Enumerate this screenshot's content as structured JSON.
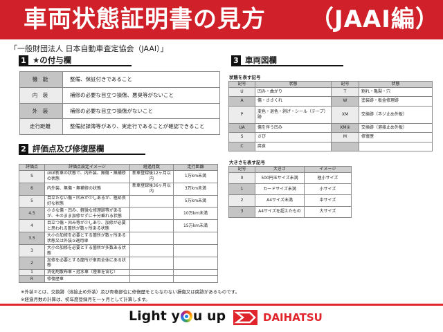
{
  "header": {
    "title": "車両状態証明書の見方",
    "subtitle": "（JAAI編）"
  },
  "organization": "「一般財団法人 日本自動車査定協会（JAAI）」",
  "section1": {
    "num": "1",
    "title": "★の付与欄",
    "rows": [
      [
        "機　能",
        "整備、保証付きであること"
      ],
      [
        "内　装",
        "補修の必要な目立つ損傷、悪臭等がないこと"
      ],
      [
        "外　装",
        "補修の必要な目立つ損傷がないこと"
      ],
      [
        "走行距離",
        "整備記録簿等があり、実走行であることが確認できること"
      ]
    ]
  },
  "section2": {
    "num": "2",
    "title": "評価点及び修復歴欄",
    "headers": [
      "評価点",
      "評価点設定イメージ",
      "経過月数",
      "走行距離"
    ],
    "rows": [
      [
        "S",
        "ほぼ新車の状態で、内外装、無傷・無補修の状態",
        "新車登録後12ヶ月以内",
        "1万km未満"
      ],
      [
        "6",
        "内外装、無傷・無補修の状態",
        "新車登録後36ヶ月以内",
        "3万km未満"
      ],
      [
        "5",
        "目立たない傷・凹みが少しあるが、極め良好な状態",
        "",
        "5万km未満"
      ],
      [
        "4.5",
        "小さな傷・凹み、軽微な修理跡等があるが、そのまま加修せずに十分乗れる状態",
        "",
        "10万km未満"
      ],
      [
        "4",
        "目立つ傷・凹み等が少しあり、加修が必要と思われる箇所が数ヶ所ある状態",
        "",
        "15万km未満"
      ],
      [
        "3.5",
        "大小の加修を必要とする箇所が数ヶ所ある状態又は外装②適用車",
        "",
        ""
      ],
      [
        "3",
        "大小の加修を必要とする箇所が多数ある状態",
        "",
        ""
      ],
      [
        "2",
        "加修を必要とする箇所が車両全体にある状態",
        "",
        ""
      ],
      [
        "1",
        "消化剤散布車・冠水車（燈車を含む）",
        "",
        ""
      ],
      [
        "R",
        "修復歴車",
        "",
        ""
      ]
    ]
  },
  "notes": [
    "※外装②とは、交換跡（溶接止め外装）及び骨格部位に修復歴をともなわない損傷又は腐跡があるものです。",
    "※経過月数の計算は、初年度登録月を一ヶ月として計算します。"
  ],
  "section3": {
    "num": "3",
    "title": "車両図欄",
    "state_label": "状態を表す記号",
    "state_headers": [
      "記号",
      "状態",
      "記号",
      "状態"
    ],
    "state_rows": [
      [
        "U",
        "凹み・曲がり",
        "T",
        "割れ・亀裂・穴"
      ],
      [
        "A",
        "傷・ささくれ",
        "W",
        "塗装跡・板金修理跡"
      ],
      [
        "P",
        "変色・退色・剥げ・シール（テープ）跡",
        "XM",
        "交換跡（ネジ止め外板）"
      ],
      [
        "UA",
        "傷を伴う凹み",
        "XM②",
        "交換跡（溶接止め外板）"
      ],
      [
        "S",
        "さび",
        "M",
        "修復歴"
      ],
      [
        "C",
        "腐食",
        "",
        ""
      ]
    ],
    "size_label": "大きさを表す記号",
    "size_headers": [
      "記号",
      "大きさ",
      "イメージ"
    ],
    "size_rows": [
      [
        "0",
        "500円玉サイズ未満",
        "極小サイズ"
      ],
      [
        "1",
        "カードサイズ未満",
        "小サイズ"
      ],
      [
        "2",
        "A4サイズ未満",
        "中サイズ"
      ],
      [
        "3",
        "A4サイズを超えたもの",
        "大サイズ"
      ]
    ]
  },
  "footer": {
    "slogan_pre": "Light y",
    "slogan_post": "u up",
    "brand": "DAIHATSU",
    "brand_color": "#e0242b"
  }
}
